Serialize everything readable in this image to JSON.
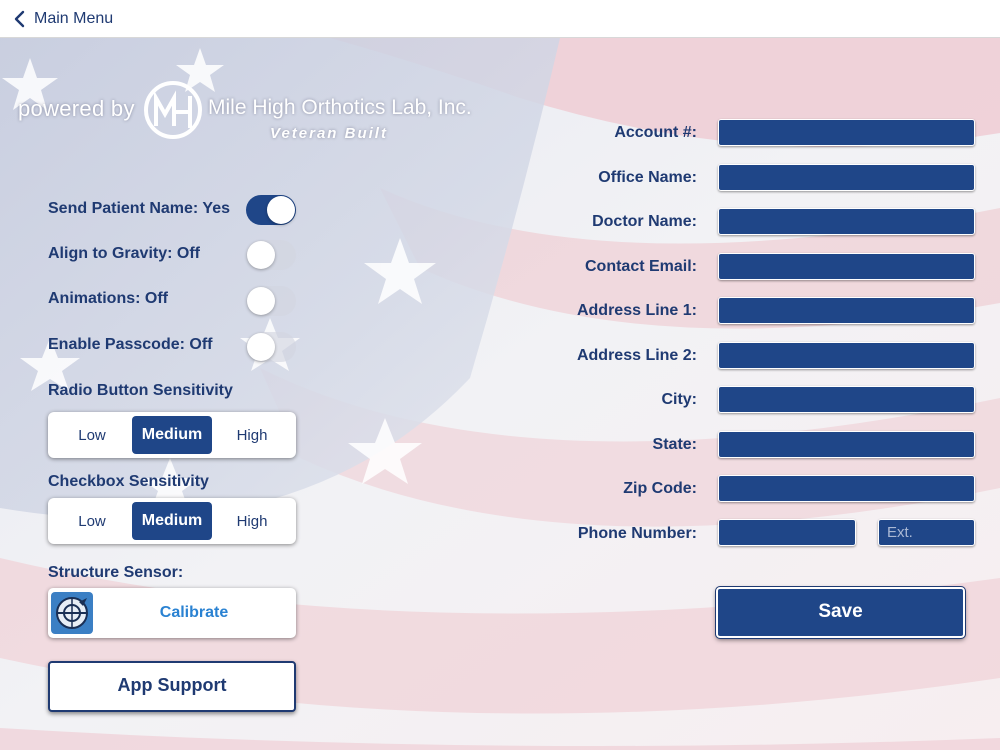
{
  "nav": {
    "back_label": "Main Menu"
  },
  "logo": {
    "powered": "powered by",
    "company": "Mile High Orthotics Lab, Inc.",
    "tagline": "Veteran Built"
  },
  "settings": {
    "send_patient_name": {
      "label": "Send Patient Name: Yes",
      "on": true
    },
    "align_gravity": {
      "label": "Align to Gravity: Off",
      "on": false
    },
    "animations": {
      "label": "Animations: Off",
      "on": false
    },
    "enable_passcode": {
      "label": "Enable Passcode: Off",
      "on": false
    }
  },
  "radio_sensitivity": {
    "label": "Radio Button Sensitivity",
    "options": [
      "Low",
      "Medium",
      "High"
    ],
    "selected": "Medium"
  },
  "checkbox_sensitivity": {
    "label": "Checkbox Sensitivity",
    "options": [
      "Low",
      "Medium",
      "High"
    ],
    "selected": "Medium"
  },
  "structure_sensor": {
    "label": "Structure Sensor:",
    "calibrate_label": "Calibrate"
  },
  "app_support_label": "App Support",
  "form": {
    "account": {
      "label": "Account #:",
      "value": ""
    },
    "office_name": {
      "label": "Office Name:",
      "value": ""
    },
    "doctor_name": {
      "label": "Doctor Name:",
      "value": ""
    },
    "contact_email": {
      "label": "Contact Email:",
      "value": ""
    },
    "address1": {
      "label": "Address Line 1:",
      "value": ""
    },
    "address2": {
      "label": "Address Line 2:",
      "value": ""
    },
    "city": {
      "label": "City:",
      "value": ""
    },
    "state": {
      "label": "State:",
      "value": ""
    },
    "zip": {
      "label": "Zip Code:",
      "value": ""
    },
    "phone": {
      "label": "Phone Number:",
      "value": ""
    },
    "ext": {
      "value": "",
      "placeholder": "Ext."
    }
  },
  "save_label": "Save",
  "colors": {
    "primary_navy": "#1f4688",
    "text_navy": "#1f3a72",
    "calibrate_blue": "#2a82d2",
    "background": "#ffffff"
  }
}
